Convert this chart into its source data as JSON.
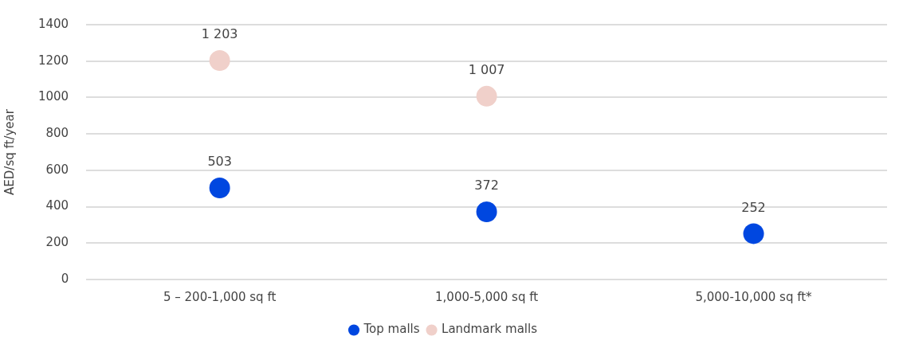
{
  "chart_data": {
    "type": "scatter",
    "ylabel": "AED/sq ft/year",
    "categories": [
      "5 – 200-1,000 sq ft",
      "1,000-5,000 sq ft",
      "5,000-10,000 sq ft*"
    ],
    "series": [
      {
        "name": "Top malls",
        "color": "#0047e0",
        "values": [
          503,
          372,
          252
        ],
        "value_labels": [
          "503",
          "372",
          "252"
        ]
      },
      {
        "name": "Landmark malls",
        "color": "#f0d0ca",
        "values": [
          1203,
          1007,
          null
        ],
        "value_labels": [
          "1 203",
          "1 007",
          null
        ]
      }
    ],
    "ylim": [
      0,
      1400
    ],
    "yticks": [
      0,
      200,
      400,
      600,
      800,
      1000,
      1200,
      1400
    ],
    "grid": "y",
    "legend": "bottom",
    "marker": "circle"
  }
}
